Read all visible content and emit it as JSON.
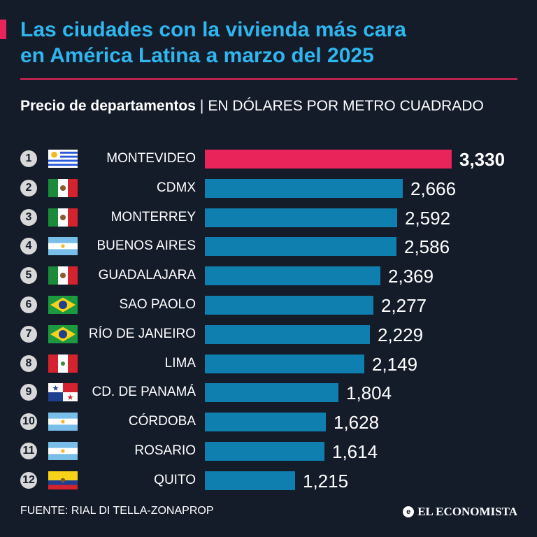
{
  "header": {
    "title_line1": "Las ciudades con la vivienda más cara",
    "title_line2": "en América Latina a marzo del 2025",
    "subtitle_bold": "Precio de departamentos",
    "subtitle_separator": "|",
    "subtitle_unit": "EN DÓLARES POR METRO CUADRADO"
  },
  "colors": {
    "accent": "#e8245a",
    "title": "#2fb6ee",
    "bar": "#0f7faf",
    "background": "#141c2a"
  },
  "chart_data": {
    "type": "bar",
    "orientation": "horizontal",
    "title": "Las ciudades con la vivienda más cara en América Latina a marzo del 2025",
    "subtitle": "Precio de departamentos | EN DÓLARES POR METRO CUADRADO",
    "unit": "USD per m²",
    "categories": [
      "MONTEVIDEO",
      "CDMX",
      "MONTERREY",
      "BUENOS AIRES",
      "GUADALAJARA",
      "SAO PAOLO",
      "RÍO DE JANEIRO",
      "LIMA",
      "CD. DE PANAMÁ",
      "CÓRDOBA",
      "ROSARIO",
      "QUITO"
    ],
    "ranks": [
      "1",
      "2",
      "3",
      "4",
      "5",
      "6",
      "7",
      "8",
      "9",
      "10",
      "11",
      "12"
    ],
    "flags": [
      "uruguay-flag",
      "mexico-flag",
      "mexico-flag",
      "argentina-flag",
      "mexico-flag",
      "brazil-flag",
      "brazil-flag",
      "peru-flag",
      "panama-flag",
      "argentina-flag",
      "argentina-flag",
      "ecuador-flag"
    ],
    "values": [
      3330,
      2666,
      2592,
      2586,
      2369,
      2277,
      2229,
      2149,
      1804,
      1628,
      1614,
      1215
    ],
    "value_labels": [
      "3,330",
      "2,666",
      "2,592",
      "2,586",
      "2,369",
      "2,277",
      "2,229",
      "2,149",
      "1,804",
      "1,628",
      "1,614",
      "1,215"
    ],
    "highlight_index": 0,
    "xlim": [
      0,
      3330
    ]
  },
  "footer": {
    "source": "FUENTE: RIAL DI TELLA-ZONAPROP",
    "brand": "EL ECONOMISTA",
    "brand_icon": "e"
  }
}
